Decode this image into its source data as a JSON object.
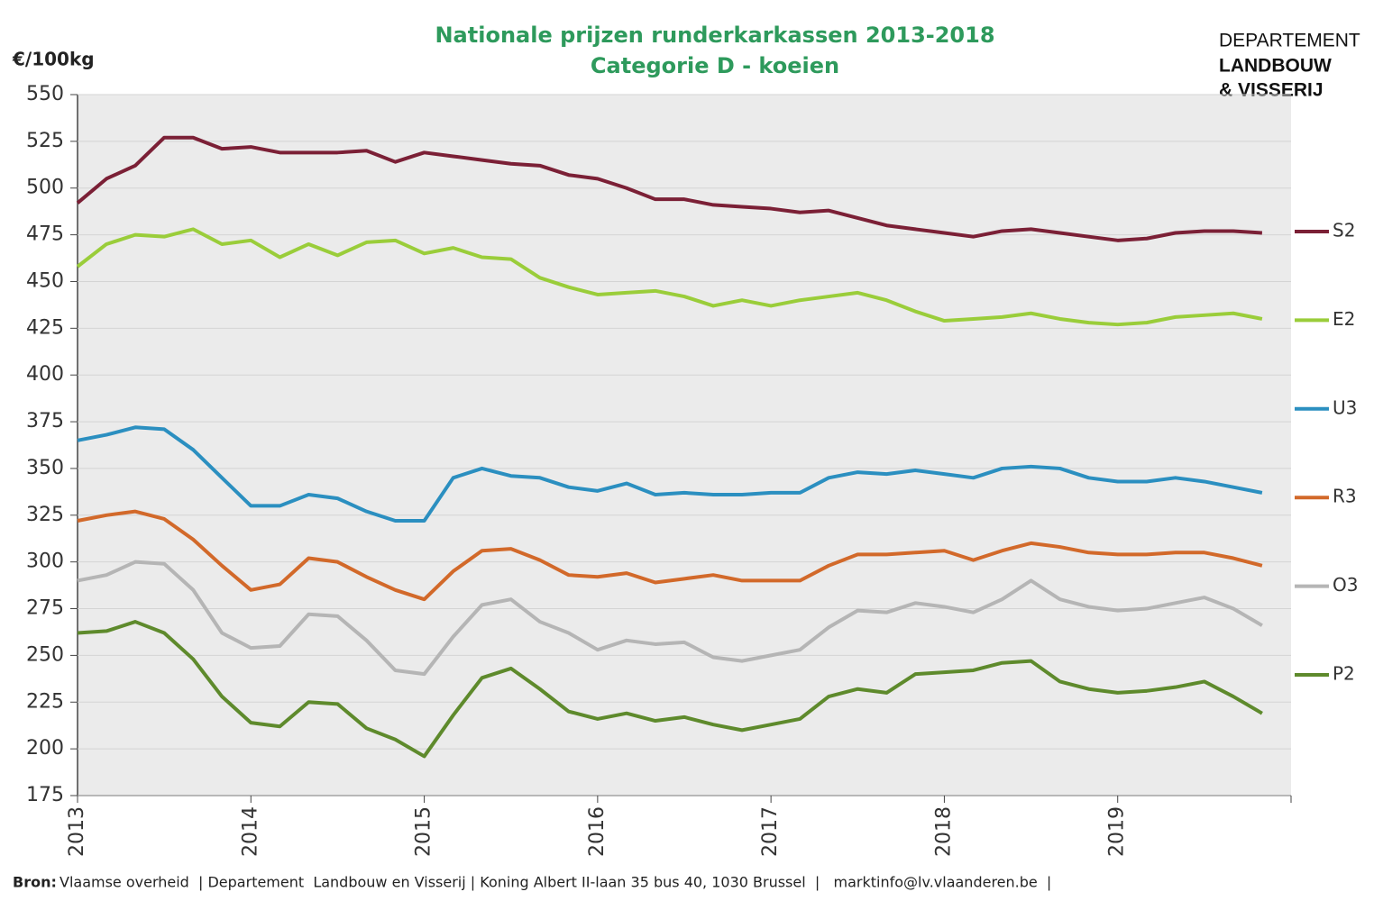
{
  "chart_data": {
    "type": "line",
    "title": [
      "Nationale prijzen runderkarkassen 2013-2018",
      "Categorie D - koeien"
    ],
    "y_label": "€/100kg",
    "logo": [
      "DEPARTEMENT",
      "LANDBOUW",
      "& VISSERIJ"
    ],
    "source_label": "Bron:",
    "source_text": "Vlaamse overheid  | Departement  Landbouw en Visserij | Koning Albert II-laan 35 bus 40, 1030 Brussel  |   marktinfo@lv.vlaanderen.be  |",
    "x": [
      2013,
      2013.167,
      2013.333,
      2013.5,
      2013.667,
      2013.833,
      2014,
      2014.167,
      2014.333,
      2014.5,
      2014.667,
      2014.833,
      2015,
      2015.167,
      2015.333,
      2015.5,
      2015.667,
      2015.833,
      2016,
      2016.167,
      2016.333,
      2016.5,
      2016.667,
      2016.833,
      2017,
      2017.167,
      2017.333,
      2017.5,
      2017.667,
      2017.833,
      2018,
      2018.167,
      2018.333,
      2018.5,
      2018.667,
      2018.833,
      2019,
      2019.167,
      2019.333,
      2019.5,
      2019.667,
      2019.833
    ],
    "xlim": [
      2013,
      2020
    ],
    "xticks": [
      2013,
      2014,
      2015,
      2016,
      2017,
      2018,
      2019
    ],
    "ylim": [
      175,
      550
    ],
    "yticks": [
      175,
      200,
      225,
      250,
      275,
      300,
      325,
      350,
      375,
      400,
      425,
      450,
      475,
      500,
      525,
      550
    ],
    "grid": true,
    "legend": "right",
    "series": [
      {
        "name": "S2",
        "color": "#7b2036",
        "values": [
          492,
          505,
          512,
          527,
          527,
          521,
          522,
          519,
          519,
          519,
          520,
          514,
          519,
          517,
          515,
          513,
          512,
          507,
          505,
          500,
          494,
          494,
          491,
          490,
          489,
          487,
          488,
          484,
          480,
          478,
          476,
          474,
          477,
          478,
          476,
          474,
          472,
          473,
          476,
          477,
          477,
          476
        ]
      },
      {
        "name": "E2",
        "color": "#9acd3a",
        "values": [
          458,
          470,
          475,
          474,
          478,
          470,
          472,
          463,
          470,
          464,
          471,
          472,
          465,
          468,
          463,
          462,
          452,
          447,
          443,
          444,
          445,
          442,
          437,
          440,
          437,
          440,
          442,
          444,
          440,
          434,
          429,
          430,
          431,
          433,
          430,
          428,
          427,
          428,
          431,
          432,
          433,
          430
        ]
      },
      {
        "name": "U3",
        "color": "#2b8fc0",
        "values": [
          365,
          368,
          372,
          371,
          360,
          345,
          330,
          330,
          336,
          334,
          327,
          322,
          322,
          345,
          350,
          346,
          345,
          340,
          338,
          342,
          336,
          337,
          336,
          336,
          337,
          337,
          345,
          348,
          347,
          349,
          347,
          345,
          350,
          351,
          350,
          345,
          343,
          343,
          345,
          343,
          340,
          337
        ]
      },
      {
        "name": "R3",
        "color": "#d2692a",
        "values": [
          322,
          325,
          327,
          323,
          312,
          298,
          285,
          288,
          302,
          300,
          292,
          285,
          280,
          295,
          306,
          307,
          301,
          293,
          292,
          294,
          289,
          291,
          293,
          290,
          290,
          290,
          298,
          304,
          304,
          305,
          306,
          301,
          306,
          310,
          308,
          305,
          304,
          304,
          305,
          305,
          302,
          298
        ]
      },
      {
        "name": "O3",
        "color": "#b5b5b5",
        "values": [
          290,
          293,
          300,
          299,
          285,
          262,
          254,
          255,
          272,
          271,
          258,
          242,
          240,
          260,
          277,
          280,
          268,
          262,
          253,
          258,
          256,
          257,
          249,
          247,
          250,
          253,
          265,
          274,
          273,
          278,
          276,
          273,
          280,
          290,
          280,
          276,
          274,
          275,
          278,
          281,
          275,
          266
        ]
      },
      {
        "name": "P2",
        "color": "#5e8a2c",
        "values": [
          262,
          263,
          268,
          262,
          248,
          228,
          214,
          212,
          225,
          224,
          211,
          205,
          196,
          218,
          238,
          243,
          232,
          220,
          216,
          219,
          215,
          217,
          213,
          210,
          213,
          216,
          228,
          232,
          230,
          240,
          241,
          242,
          246,
          247,
          236,
          232,
          230,
          231,
          233,
          236,
          228,
          219
        ]
      }
    ]
  }
}
